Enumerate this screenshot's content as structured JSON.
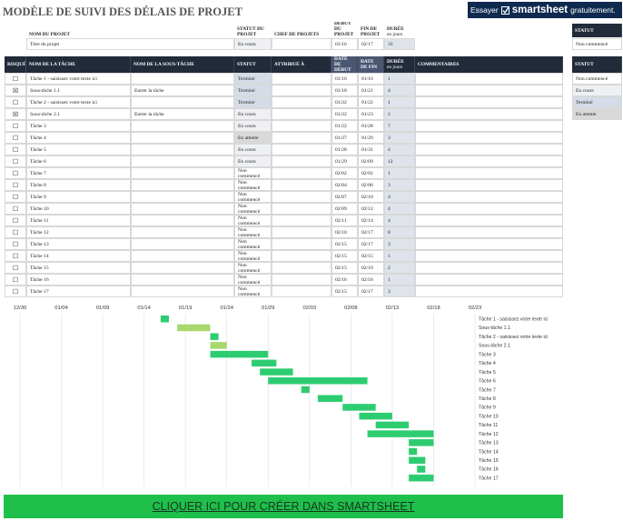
{
  "header": {
    "title": "MODÈLE DE SUIVI DES DÉLAIS DE PROJET",
    "banner": {
      "try": "Essayer",
      "brand": "smartsheet",
      "free": "gratuitement."
    }
  },
  "project": {
    "columns": [
      {
        "label": "NOM DU PROJET",
        "value": "Titre du projet"
      },
      {
        "label": "STATUT DU PROJET",
        "value": "En cours"
      },
      {
        "label": "CHEF DE PROJETS"
      },
      {
        "label": "DEBUT DU PROJET",
        "value": "01/16"
      },
      {
        "label": "FIN DE PROJET",
        "value": "02/17"
      },
      {
        "label": "DURÉE",
        "sub": "en jours",
        "value": "33"
      }
    ]
  },
  "project_status_box": {
    "title": "STATUT",
    "value": "Non commencé"
  },
  "status_options": {
    "title": "STATUT",
    "items": [
      {
        "label": "Non commencé",
        "color": "#ffffff"
      },
      {
        "label": "En cours",
        "color": "#eef0f4"
      },
      {
        "label": "Terminé",
        "color": "#d5dce8"
      },
      {
        "label": "En attente",
        "color": "#d9d9d9"
      }
    ]
  },
  "table": {
    "columns": [
      {
        "label": "RISQUÉ"
      },
      {
        "label": "NOM DE LA TÂCHE"
      },
      {
        "label": "NOM DE LA SOUS-TÂCHE"
      },
      {
        "label": "STATUT"
      },
      {
        "label": "ATTRIBUÉ À"
      },
      {
        "label": "DATE DE DÉBUT"
      },
      {
        "label": "DATE DE FIN"
      },
      {
        "label": "DURÉE",
        "sub": "en jours"
      },
      {
        "label": "COMMENTAIRES"
      }
    ],
    "rows": [
      {
        "risk": "☐",
        "task": "Tâche 1 - saisissez votre texte ici",
        "status": "Terminé",
        "start": "01/16",
        "end": "01/16",
        "duration": "1"
      },
      {
        "risk": "☒",
        "task": "Sous-tâche 1.1",
        "subtask": "Entrer la tâche",
        "status": "Terminé",
        "start": "01/18",
        "end": "01/21",
        "duration": "4"
      },
      {
        "risk": "☐",
        "task": "Tâche 2 - saisissez votre texte ici",
        "status": "Terminé",
        "start": "01/22",
        "end": "01/22",
        "duration": "1"
      },
      {
        "risk": "☒",
        "task": "Sous-tâche 2.1",
        "subtask": "Entrer la tâche",
        "status": "En cours",
        "start": "01/22",
        "end": "01/23",
        "duration": "2"
      },
      {
        "risk": "☐",
        "task": "Tâche 3",
        "status": "En cours",
        "start": "01/22",
        "end": "01/28",
        "duration": "7"
      },
      {
        "risk": "☐",
        "task": "Tâche 4",
        "status": "En attente",
        "start": "01/27",
        "end": "01/29",
        "duration": "3"
      },
      {
        "risk": "☐",
        "task": "Tâche 5",
        "status": "En cours",
        "start": "01/28",
        "end": "01/31",
        "duration": "4"
      },
      {
        "risk": "☐",
        "task": "Tâche 6",
        "status": "En cours",
        "start": "01/29",
        "end": "02/09",
        "duration": "12"
      },
      {
        "risk": "☐",
        "task": "Tâche 7",
        "status": "Non commencé",
        "start": "02/02",
        "end": "02/02",
        "duration": "1"
      },
      {
        "risk": "☐",
        "task": "Tâche 8",
        "status": "Non commencé",
        "start": "02/04",
        "end": "02/06",
        "duration": "3"
      },
      {
        "risk": "☐",
        "task": "Tâche 9",
        "status": "Non commencé",
        "start": "02/07",
        "end": "02/10",
        "duration": "4"
      },
      {
        "risk": "☐",
        "task": "Tâche 10",
        "status": "Non commencé",
        "start": "02/09",
        "end": "02/12",
        "duration": "4"
      },
      {
        "risk": "☐",
        "task": "Tâche 11",
        "status": "Non commencé",
        "start": "02/11",
        "end": "02/14",
        "duration": "4"
      },
      {
        "risk": "☐",
        "task": "Tâche 12",
        "status": "Non commencé",
        "start": "02/10",
        "end": "02/17",
        "duration": "8"
      },
      {
        "risk": "☐",
        "task": "Tâche 13",
        "status": "Non commencé",
        "start": "02/15",
        "end": "02/17",
        "duration": "3"
      },
      {
        "risk": "☐",
        "task": "Tâche 14",
        "status": "Non commencé",
        "start": "02/15",
        "end": "02/15",
        "duration": "1"
      },
      {
        "risk": "☐",
        "task": "Tâche 15",
        "status": "Non commencé",
        "start": "02/15",
        "end": "02/16",
        "duration": "2"
      },
      {
        "risk": "☐",
        "task": "Tâche 16",
        "status": "Non commencé",
        "start": "02/16",
        "end": "02/16",
        "duration": "1"
      },
      {
        "risk": "☐",
        "task": "Tâche 17",
        "status": "Non commencé",
        "start": "02/15",
        "end": "02/17",
        "duration": "3"
      }
    ]
  },
  "chart_data": {
    "type": "gantt",
    "categories": [
      "Tâche 1 - saisissez votre texte ici",
      "Sous-tâche 1.1",
      "Tâche 2 - saisissez votre texte ici",
      "Sous-tâche 2.1",
      "Tâche 3",
      "Tâche 4",
      "Tâche 5",
      "Tâche 6",
      "Tâche 7",
      "Tâche 8",
      "Tâche 9",
      "Tâche 10",
      "Tâche 11",
      "Tâche 12",
      "Tâche 13",
      "Tâche 14",
      "Tâche 15",
      "Tâche 16",
      "Tâche 17"
    ],
    "start": [
      "01/16",
      "01/18",
      "01/22",
      "01/22",
      "01/22",
      "01/27",
      "01/28",
      "01/29",
      "02/02",
      "02/04",
      "02/07",
      "02/09",
      "02/11",
      "02/10",
      "02/15",
      "02/15",
      "02/15",
      "02/16",
      "02/15"
    ],
    "values": [
      1,
      4,
      1,
      2,
      7,
      3,
      4,
      12,
      1,
      3,
      4,
      4,
      4,
      8,
      3,
      1,
      2,
      1,
      3
    ],
    "colors": [
      "#2ecc71",
      "#a7d86b",
      "#2ecc71",
      "#a7d86b",
      "#2ecc71",
      "#2ecc71",
      "#2ecc71",
      "#2ecc71",
      "#2ecc71",
      "#2ecc71",
      "#2ecc71",
      "#2ecc71",
      "#2ecc71",
      "#2ecc71",
      "#2ecc71",
      "#2ecc71",
      "#2ecc71",
      "#2ecc71",
      "#2ecc71"
    ],
    "xlim": [
      "12/30",
      "02/23"
    ],
    "xticks": [
      "12/30",
      "01/04",
      "01/09",
      "01/14",
      "01/19",
      "01/24",
      "01/29",
      "02/03",
      "02/08",
      "02/13",
      "02/18",
      "02/23"
    ],
    "grid": true
  },
  "button": {
    "label": "CLIQUER ICI POUR CRÉER DANS SMARTSHEET"
  }
}
